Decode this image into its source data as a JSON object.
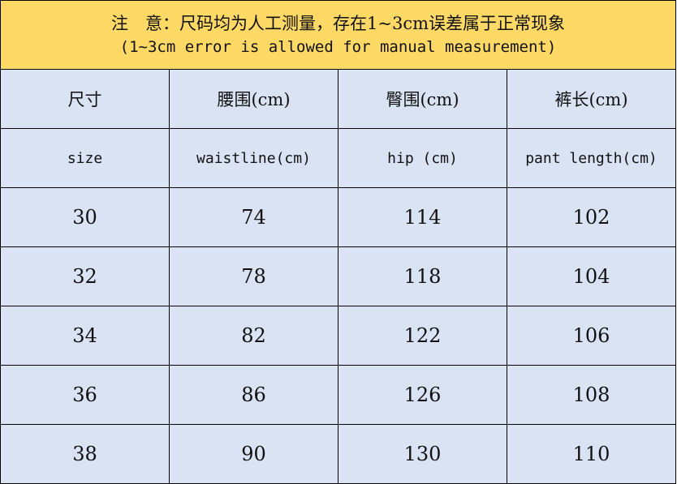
{
  "note": {
    "line1": "注　意：尺码均为人工测量，存在1~3cm误差属于正常现象",
    "line2": "(1~3cm error is allowed for manual measurement)"
  },
  "colors": {
    "note_bg": "#FFD966",
    "cell_bg": "#DAE3F3"
  },
  "table": {
    "headers_zh": [
      "尺寸",
      "腰围(cm)",
      "臀围(cm)",
      "裤长(cm)"
    ],
    "headers_en": [
      "size",
      "waistline(cm)",
      "hip (cm)",
      "pant length(cm)"
    ],
    "rows": [
      [
        "30",
        "74",
        "114",
        "102"
      ],
      [
        "32",
        "78",
        "118",
        "104"
      ],
      [
        "34",
        "82",
        "122",
        "106"
      ],
      [
        "36",
        "86",
        "126",
        "108"
      ],
      [
        "38",
        "90",
        "130",
        "110"
      ]
    ]
  }
}
